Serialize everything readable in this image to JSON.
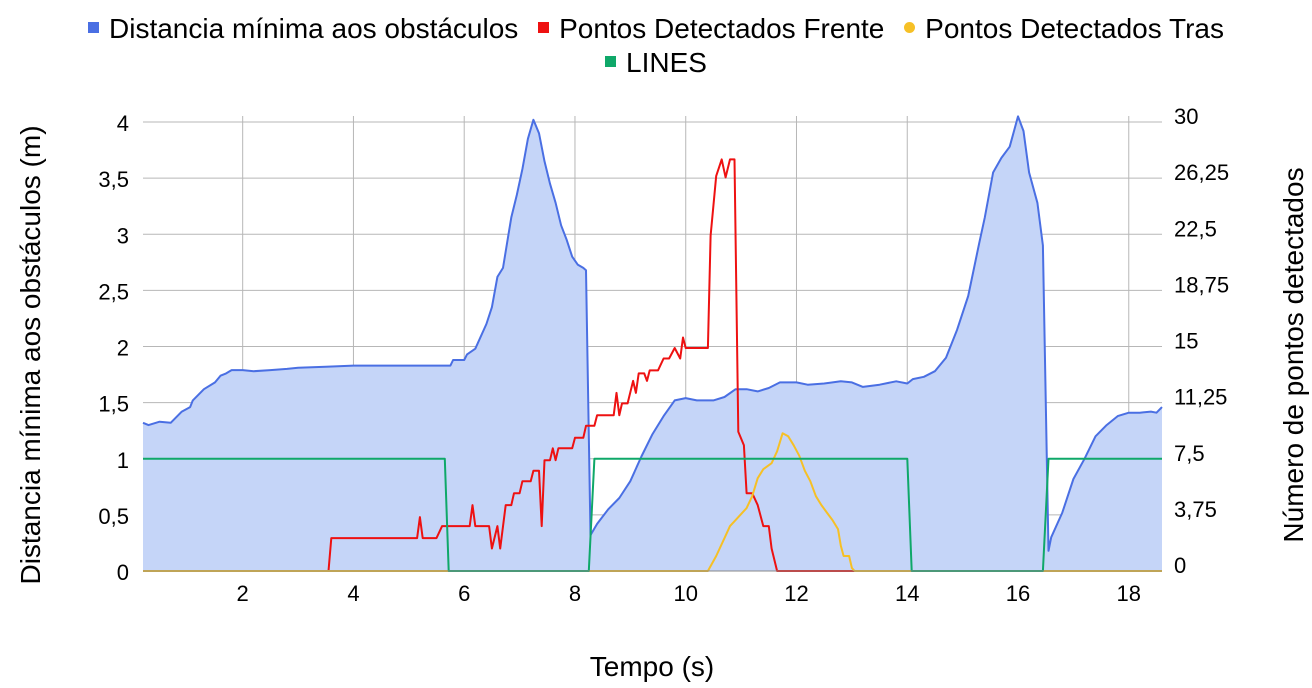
{
  "chart_data": {
    "type": "line",
    "xlabel": "Tempo (s)",
    "ylabel": "Distancia mínima aos obstáculos (m)",
    "y2label": "Número de pontos detectados",
    "xlim": [
      0.2,
      18.6
    ],
    "ylim": [
      0,
      4
    ],
    "y2lim": [
      0,
      30
    ],
    "x_ticks": [
      2,
      4,
      6,
      8,
      10,
      12,
      14,
      16,
      18
    ],
    "x_tick_labels": [
      "2",
      "4",
      "6",
      "8",
      "10",
      "12",
      "14",
      "16",
      "18"
    ],
    "y_ticks": [
      0,
      0.5,
      1,
      1.5,
      2,
      2.5,
      3,
      3.5,
      4
    ],
    "y_tick_labels": [
      "0",
      "0,5",
      "1",
      "1,5",
      "2",
      "2,5",
      "3",
      "3,5",
      "4"
    ],
    "y2_ticks": [
      0,
      3.75,
      7.5,
      11.25,
      15,
      18.75,
      22.5,
      26.25,
      30
    ],
    "y2_tick_labels": [
      "0",
      "3,75",
      "7,5",
      "11,25",
      "15",
      "18,75",
      "22,5",
      "26,25",
      "30"
    ],
    "grid": true,
    "legend_position": "top",
    "series": [
      {
        "name": "Distancia mínima aos obstáculos",
        "axis": "left",
        "style": "area",
        "color": "#4a6fe3",
        "fill": "#c5d5f8",
        "points": [
          [
            0.2,
            1.32
          ],
          [
            0.3,
            1.3
          ],
          [
            0.5,
            1.33
          ],
          [
            0.7,
            1.32
          ],
          [
            0.9,
            1.42
          ],
          [
            1.05,
            1.46
          ],
          [
            1.1,
            1.52
          ],
          [
            1.3,
            1.62
          ],
          [
            1.5,
            1.68
          ],
          [
            1.6,
            1.74
          ],
          [
            1.7,
            1.76
          ],
          [
            1.8,
            1.79
          ],
          [
            2.0,
            1.79
          ],
          [
            2.2,
            1.78
          ],
          [
            2.5,
            1.79
          ],
          [
            2.8,
            1.8
          ],
          [
            3.0,
            1.81
          ],
          [
            3.5,
            1.82
          ],
          [
            4.0,
            1.83
          ],
          [
            4.5,
            1.83
          ],
          [
            5.0,
            1.83
          ],
          [
            5.5,
            1.83
          ],
          [
            5.75,
            1.83
          ],
          [
            5.8,
            1.88
          ],
          [
            6.0,
            1.88
          ],
          [
            6.05,
            1.93
          ],
          [
            6.2,
            1.98
          ],
          [
            6.4,
            2.2
          ],
          [
            6.5,
            2.35
          ],
          [
            6.6,
            2.62
          ],
          [
            6.7,
            2.7
          ],
          [
            6.8,
            3.0
          ],
          [
            6.85,
            3.15
          ],
          [
            6.95,
            3.35
          ],
          [
            7.05,
            3.58
          ],
          [
            7.15,
            3.85
          ],
          [
            7.25,
            4.02
          ],
          [
            7.35,
            3.9
          ],
          [
            7.45,
            3.65
          ],
          [
            7.55,
            3.45
          ],
          [
            7.65,
            3.28
          ],
          [
            7.75,
            3.08
          ],
          [
            7.85,
            2.95
          ],
          [
            7.95,
            2.8
          ],
          [
            8.05,
            2.73
          ],
          [
            8.15,
            2.7
          ],
          [
            8.2,
            2.68
          ],
          [
            8.28,
            0.32
          ],
          [
            8.4,
            0.42
          ],
          [
            8.6,
            0.55
          ],
          [
            8.8,
            0.65
          ],
          [
            9.0,
            0.8
          ],
          [
            9.2,
            1.02
          ],
          [
            9.4,
            1.22
          ],
          [
            9.6,
            1.38
          ],
          [
            9.8,
            1.52
          ],
          [
            10.0,
            1.54
          ],
          [
            10.2,
            1.52
          ],
          [
            10.5,
            1.52
          ],
          [
            10.7,
            1.55
          ],
          [
            10.9,
            1.62
          ],
          [
            11.1,
            1.62
          ],
          [
            11.3,
            1.6
          ],
          [
            11.5,
            1.63
          ],
          [
            11.7,
            1.68
          ],
          [
            12.0,
            1.68
          ],
          [
            12.2,
            1.66
          ],
          [
            12.5,
            1.67
          ],
          [
            12.8,
            1.69
          ],
          [
            13.0,
            1.68
          ],
          [
            13.2,
            1.64
          ],
          [
            13.5,
            1.66
          ],
          [
            13.8,
            1.69
          ],
          [
            14.0,
            1.67
          ],
          [
            14.1,
            1.71
          ],
          [
            14.3,
            1.73
          ],
          [
            14.5,
            1.78
          ],
          [
            14.7,
            1.9
          ],
          [
            14.9,
            2.15
          ],
          [
            15.1,
            2.45
          ],
          [
            15.3,
            2.92
          ],
          [
            15.4,
            3.15
          ],
          [
            15.55,
            3.55
          ],
          [
            15.7,
            3.68
          ],
          [
            15.85,
            3.78
          ],
          [
            16.0,
            4.05
          ],
          [
            16.1,
            3.92
          ],
          [
            16.2,
            3.55
          ],
          [
            16.35,
            3.28
          ],
          [
            16.45,
            2.9
          ],
          [
            16.55,
            0.18
          ],
          [
            16.6,
            0.3
          ],
          [
            16.8,
            0.52
          ],
          [
            17.0,
            0.82
          ],
          [
            17.2,
            1.0
          ],
          [
            17.4,
            1.2
          ],
          [
            17.6,
            1.3
          ],
          [
            17.8,
            1.38
          ],
          [
            18.0,
            1.41
          ],
          [
            18.2,
            1.41
          ],
          [
            18.4,
            1.42
          ],
          [
            18.5,
            1.41
          ],
          [
            18.6,
            1.46
          ]
        ]
      },
      {
        "name": "Pontos Detectados Frente",
        "axis": "right",
        "style": "line",
        "color": "#ee1111",
        "points": [
          [
            0.2,
            0
          ],
          [
            3.55,
            0
          ],
          [
            3.6,
            2.2
          ],
          [
            5.0,
            2.2
          ],
          [
            5.15,
            2.2
          ],
          [
            5.2,
            3.6
          ],
          [
            5.25,
            2.2
          ],
          [
            5.5,
            2.2
          ],
          [
            5.6,
            3.0
          ],
          [
            6.1,
            3.0
          ],
          [
            6.15,
            4.4
          ],
          [
            6.2,
            3.0
          ],
          [
            6.45,
            3.0
          ],
          [
            6.5,
            1.5
          ],
          [
            6.6,
            3.0
          ],
          [
            6.65,
            1.5
          ],
          [
            6.75,
            4.4
          ],
          [
            6.85,
            4.4
          ],
          [
            6.9,
            5.2
          ],
          [
            7.0,
            5.2
          ],
          [
            7.05,
            6.0
          ],
          [
            7.2,
            6.0
          ],
          [
            7.25,
            6.7
          ],
          [
            7.35,
            6.7
          ],
          [
            7.4,
            3.0
          ],
          [
            7.45,
            7.4
          ],
          [
            7.55,
            7.4
          ],
          [
            7.6,
            8.2
          ],
          [
            7.65,
            7.4
          ],
          [
            7.7,
            8.2
          ],
          [
            7.95,
            8.2
          ],
          [
            8.0,
            8.9
          ],
          [
            8.15,
            8.9
          ],
          [
            8.2,
            9.7
          ],
          [
            8.35,
            9.7
          ],
          [
            8.4,
            10.4
          ],
          [
            8.7,
            10.4
          ],
          [
            8.75,
            11.9
          ],
          [
            8.8,
            10.4
          ],
          [
            8.85,
            11.2
          ],
          [
            8.95,
            11.2
          ],
          [
            9.05,
            12.7
          ],
          [
            9.1,
            11.9
          ],
          [
            9.15,
            13.2
          ],
          [
            9.25,
            13.2
          ],
          [
            9.3,
            12.7
          ],
          [
            9.35,
            13.4
          ],
          [
            9.5,
            13.4
          ],
          [
            9.6,
            14.2
          ],
          [
            9.7,
            14.2
          ],
          [
            9.8,
            14.9
          ],
          [
            9.9,
            14.2
          ],
          [
            9.95,
            15.6
          ],
          [
            10.0,
            14.9
          ],
          [
            10.4,
            14.9
          ],
          [
            10.45,
            22.4
          ],
          [
            10.55,
            26.4
          ],
          [
            10.65,
            27.5
          ],
          [
            10.72,
            26.3
          ],
          [
            10.8,
            27.5
          ],
          [
            10.88,
            27.5
          ],
          [
            10.95,
            9.3
          ],
          [
            11.05,
            8.4
          ],
          [
            11.1,
            5.2
          ],
          [
            11.2,
            5.2
          ],
          [
            11.3,
            4.4
          ],
          [
            11.4,
            3.0
          ],
          [
            11.5,
            3.0
          ],
          [
            11.55,
            1.5
          ],
          [
            11.65,
            0
          ],
          [
            13.0,
            0
          ],
          [
            18.6,
            0
          ]
        ]
      },
      {
        "name": "Pontos Detectados Tras",
        "axis": "right",
        "style": "line",
        "color": "#f6c026",
        "points": [
          [
            0.2,
            0
          ],
          [
            10.4,
            0
          ],
          [
            10.55,
            1.0
          ],
          [
            10.7,
            2.2
          ],
          [
            10.8,
            3.0
          ],
          [
            10.9,
            3.4
          ],
          [
            11.0,
            3.8
          ],
          [
            11.1,
            4.2
          ],
          [
            11.2,
            5.0
          ],
          [
            11.3,
            6.2
          ],
          [
            11.4,
            6.8
          ],
          [
            11.55,
            7.2
          ],
          [
            11.65,
            8.0
          ],
          [
            11.75,
            9.2
          ],
          [
            11.85,
            9.0
          ],
          [
            11.95,
            8.4
          ],
          [
            12.05,
            7.7
          ],
          [
            12.15,
            6.7
          ],
          [
            12.25,
            6.0
          ],
          [
            12.35,
            5.0
          ],
          [
            12.45,
            4.4
          ],
          [
            12.55,
            3.9
          ],
          [
            12.65,
            3.4
          ],
          [
            12.75,
            2.8
          ],
          [
            12.8,
            1.7
          ],
          [
            12.85,
            1.0
          ],
          [
            12.95,
            1.0
          ],
          [
            13.0,
            0.2
          ],
          [
            13.05,
            0
          ],
          [
            18.6,
            0
          ]
        ]
      },
      {
        "name": "LINES",
        "axis": "left",
        "style": "line",
        "color": "#0fa869",
        "points": [
          [
            0.2,
            1
          ],
          [
            5.65,
            1
          ],
          [
            5.72,
            0
          ],
          [
            8.25,
            0
          ],
          [
            8.35,
            1
          ],
          [
            14.0,
            1
          ],
          [
            14.08,
            0
          ],
          [
            16.45,
            0
          ],
          [
            16.55,
            1
          ],
          [
            18.6,
            1
          ]
        ]
      }
    ]
  }
}
